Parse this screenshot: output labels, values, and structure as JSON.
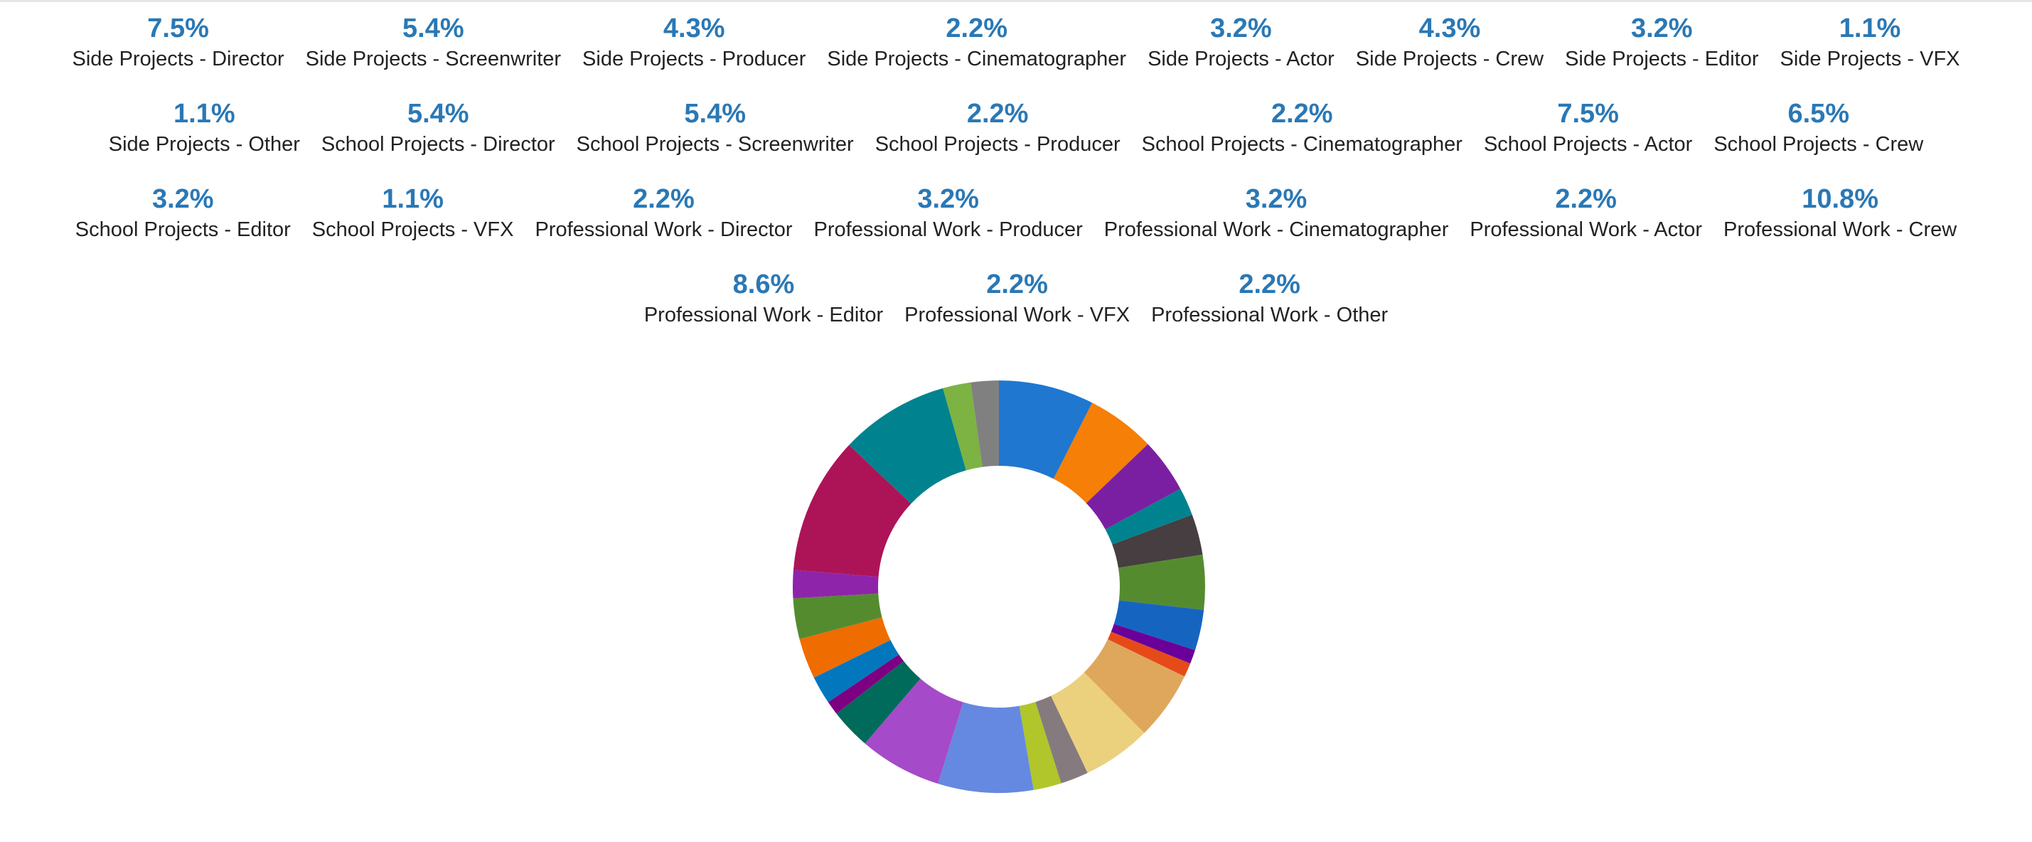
{
  "chart_data": {
    "type": "pie",
    "donut": true,
    "title": "",
    "legend_position": "top",
    "categories": [
      "Side Projects - Director",
      "Side Projects - Screenwriter",
      "Side Projects - Producer",
      "Side Projects - Cinematographer",
      "Side Projects - Actor",
      "Side Projects - Crew",
      "Side Projects - Editor",
      "Side Projects - VFX",
      "Side Projects - Other",
      "School Projects - Director",
      "School Projects - Screenwriter",
      "School Projects - Producer",
      "School Projects - Cinematographer",
      "School Projects - Actor",
      "School Projects - Crew",
      "School Projects - Editor",
      "School Projects - VFX",
      "Professional Work - Director",
      "Professional Work - Producer",
      "Professional Work - Cinematographer",
      "Professional Work - Actor",
      "Professional Work - Crew",
      "Professional Work - Editor",
      "Professional Work - VFX",
      "Professional Work - Other"
    ],
    "values": [
      7.5,
      5.4,
      4.3,
      2.2,
      3.2,
      4.3,
      3.2,
      1.1,
      1.1,
      5.4,
      5.4,
      2.2,
      2.2,
      7.5,
      6.5,
      3.2,
      1.1,
      2.2,
      3.2,
      3.2,
      2.2,
      10.8,
      8.6,
      2.2,
      2.2
    ],
    "colors": [
      "#1f77d0",
      "#f57f07",
      "#7b1fa2",
      "#00838f",
      "#463e40",
      "#558b2f",
      "#1565c0",
      "#6a0099",
      "#e64a19",
      "#dfa75c",
      "#ebd07e",
      "#857b7e",
      "#b0c62a",
      "#6589e0",
      "#a54ac9",
      "#006b5a",
      "#7d0082",
      "#0277bd",
      "#ef6c00",
      "#558b2f",
      "#8e24aa",
      "#ad1457",
      "#00838f",
      "#7cb342",
      "#808080"
    ],
    "unit": "%"
  },
  "legend": {
    "rows": [
      [
        {
          "pct": "7.5%",
          "label": "Side Projects - Director"
        },
        {
          "pct": "5.4%",
          "label": "Side Projects - Screenwriter"
        },
        {
          "pct": "4.3%",
          "label": "Side Projects - Producer"
        },
        {
          "pct": "2.2%",
          "label": "Side Projects - Cinematographer"
        },
        {
          "pct": "3.2%",
          "label": "Side Projects - Actor"
        },
        {
          "pct": "4.3%",
          "label": "Side Projects - Crew"
        },
        {
          "pct": "3.2%",
          "label": "Side Projects - Editor"
        },
        {
          "pct": "1.1%",
          "label": "Side Projects - VFX"
        }
      ],
      [
        {
          "pct": "1.1%",
          "label": "Side Projects - Other"
        },
        {
          "pct": "5.4%",
          "label": "School Projects - Director"
        },
        {
          "pct": "5.4%",
          "label": "School Projects - Screenwriter"
        },
        {
          "pct": "2.2%",
          "label": "School Projects - Producer"
        },
        {
          "pct": "2.2%",
          "label": "School Projects - Cinematographer"
        },
        {
          "pct": "7.5%",
          "label": "School Projects - Actor"
        },
        {
          "pct": "6.5%",
          "label": "School Projects - Crew"
        }
      ],
      [
        {
          "pct": "3.2%",
          "label": "School Projects - Editor"
        },
        {
          "pct": "1.1%",
          "label": "School Projects - VFX"
        },
        {
          "pct": "2.2%",
          "label": "Professional Work - Director"
        },
        {
          "pct": "3.2%",
          "label": "Professional Work - Producer"
        },
        {
          "pct": "3.2%",
          "label": "Professional Work - Cinematographer"
        },
        {
          "pct": "2.2%",
          "label": "Professional Work - Actor"
        },
        {
          "pct": "10.8%",
          "label": "Professional Work - Crew"
        }
      ],
      [
        {
          "pct": "8.6%",
          "label": "Professional Work - Editor"
        },
        {
          "pct": "2.2%",
          "label": "Professional Work - VFX"
        },
        {
          "pct": "2.2%",
          "label": "Professional Work - Other"
        }
      ]
    ]
  }
}
